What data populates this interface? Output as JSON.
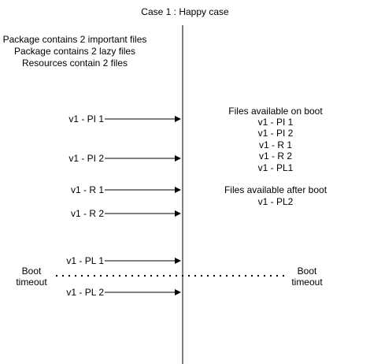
{
  "title": "Case 1 : Happy case",
  "intro_lines": [
    "Package contains 2 important files",
    "Package contains 2  lazy files",
    "Resources contain 2 files"
  ],
  "messages": [
    {
      "label": "v1 - PI 1"
    },
    {
      "label": "v1 - PI 2"
    },
    {
      "label": "v1 - R 1"
    },
    {
      "label": "v1 - R 2"
    },
    {
      "label": "v1 - PL 1"
    },
    {
      "label": "v1 - PL 2"
    }
  ],
  "on_boot": {
    "heading": "Files available on boot",
    "items": [
      "v1 - PI 1",
      "v1 - PI 2",
      "v1 - R 1",
      "v1 - R 2",
      "v1 - PL1"
    ]
  },
  "after_boot": {
    "heading": "Files available after boot",
    "items": [
      "v1 - PL2"
    ]
  },
  "timeout_left": {
    "line1": "Boot",
    "line2": "timeout"
  },
  "timeout_right": {
    "line1": "Boot",
    "line2": "timeout"
  }
}
